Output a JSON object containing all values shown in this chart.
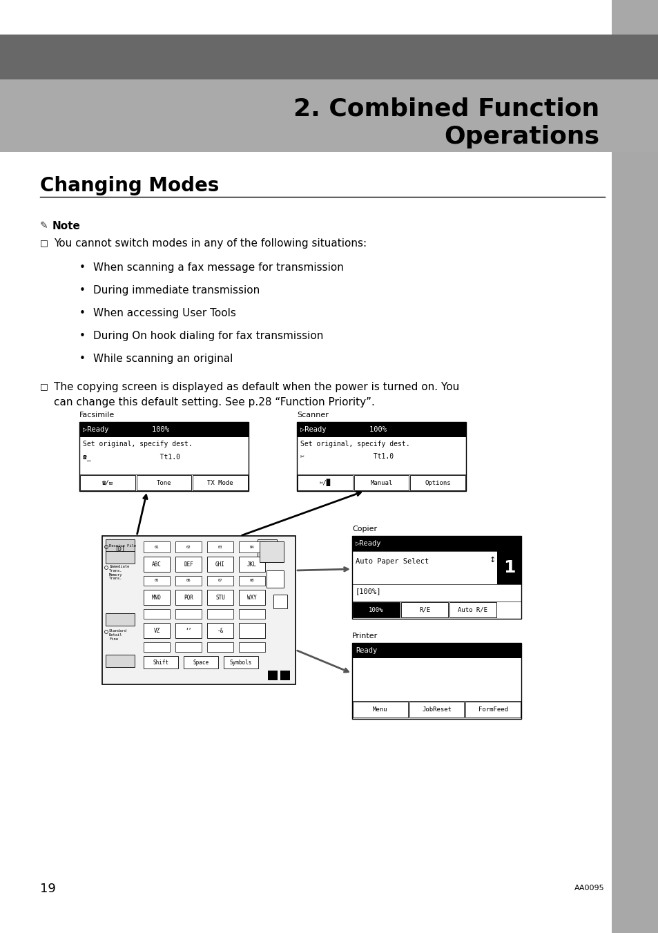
{
  "page_bg": "#ffffff",
  "sidebar_color": "#a8a8a8",
  "header_dark_color": "#686868",
  "header_light_color": "#aaaaaa",
  "header_title_line1": "2. Combined Function",
  "header_title_line2": "Operations",
  "section_title": "Changing Modes",
  "note_label": "Note",
  "bullet_char": "•",
  "note_item1": "You cannot switch modes in any of the following situations:",
  "note_item2_line1": "The copying screen is displayed as default when the power is turned on. You",
  "note_item2_line2": "can change this default setting. See p.28 “Function Priority”.",
  "bullet_items": [
    "When scanning a fax message for transmission",
    "During immediate transmission",
    "When accessing User Tools",
    "During On hook dialing for fax transmission",
    "While scanning an original"
  ],
  "page_number": "19",
  "footer_code": "AA0095"
}
